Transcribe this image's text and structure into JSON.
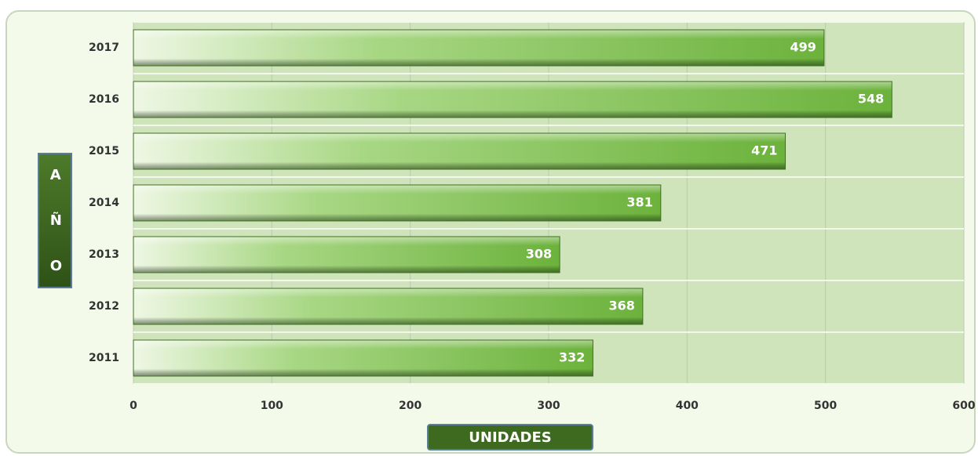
{
  "chart_data": {
    "type": "bar",
    "orientation": "horizontal",
    "categories": [
      "2017",
      "2016",
      "2015",
      "2014",
      "2013",
      "2012",
      "2011"
    ],
    "values": [
      499,
      548,
      471,
      381,
      308,
      368,
      332
    ],
    "color": "#6fb43f",
    "xlim": [
      0,
      600
    ],
    "xticks": [
      0,
      100,
      200,
      300,
      400,
      500,
      600
    ],
    "xlabel": "UNIDADES",
    "ylabel": "AÑO",
    "grid": true
  }
}
